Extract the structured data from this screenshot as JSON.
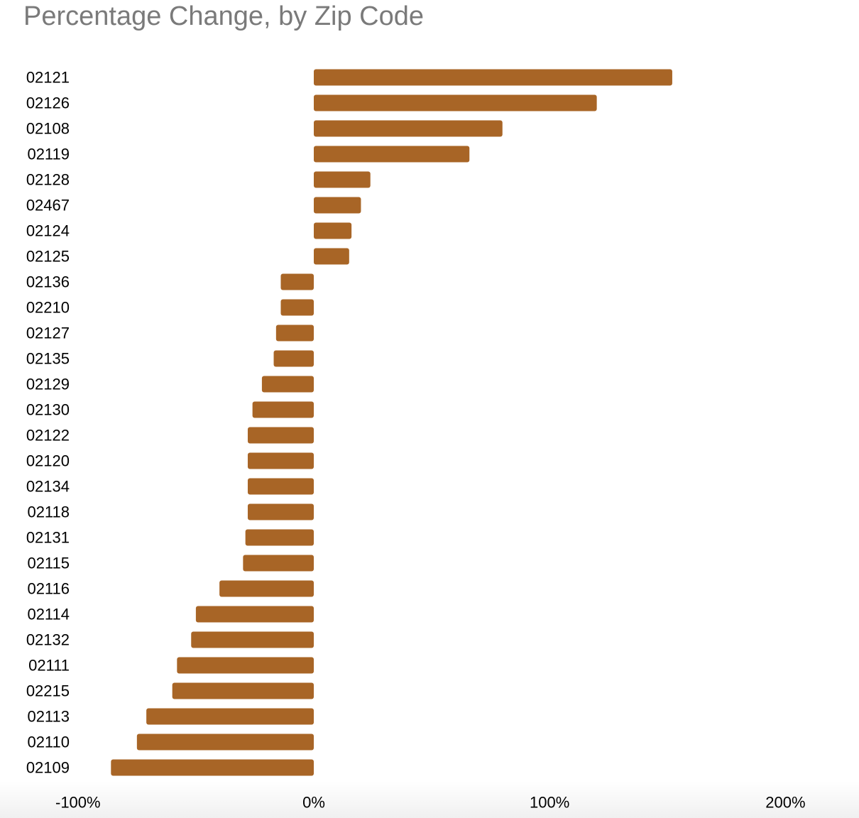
{
  "chart_data": {
    "type": "bar",
    "orientation": "horizontal",
    "title": "Percentage Change, by Zip Code",
    "xlabel": "",
    "ylabel": "",
    "xlim": [
      -100,
      200
    ],
    "x_ticks": [
      -100,
      0,
      100,
      200
    ],
    "x_tick_labels": [
      "-100%",
      "0%",
      "100%",
      "200%"
    ],
    "grid": false,
    "bar_color": "#a86526",
    "categories": [
      "02121",
      "02126",
      "02108",
      "02119",
      "02128",
      "02467",
      "02124",
      "02125",
      "02136",
      "02210",
      "02127",
      "02135",
      "02129",
      "02130",
      "02122",
      "02120",
      "02134",
      "02118",
      "02131",
      "02115",
      "02116",
      "02114",
      "02132",
      "02111",
      "02215",
      "02113",
      "02110",
      "02109"
    ],
    "values": [
      152,
      120,
      80,
      66,
      24,
      20,
      16,
      15,
      -14,
      -14,
      -16,
      -17,
      -22,
      -26,
      -28,
      -28,
      -28,
      -28,
      -29,
      -30,
      -40,
      -50,
      -52,
      -58,
      -60,
      -71,
      -75,
      -86
    ]
  }
}
